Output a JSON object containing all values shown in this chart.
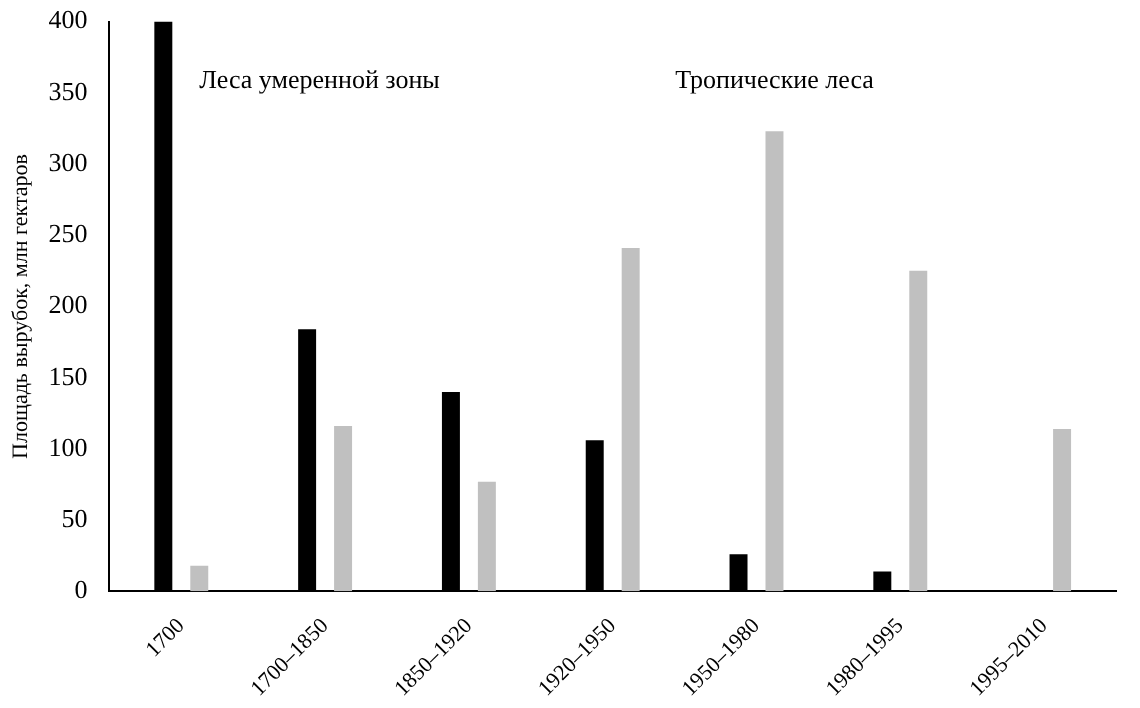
{
  "chart_data": {
    "type": "bar",
    "ylabel": "Площадь вырубок, млн гектаров",
    "categories": [
      "1700",
      "1700–1850",
      "1850–1920",
      "1920–1950",
      "1950–1980",
      "1980–1995",
      "1995–2010"
    ],
    "series": [
      {
        "name": "Леса умеренной зоны",
        "color": "#000000",
        "values": [
          400,
          184,
          140,
          106,
          26,
          14,
          null
        ]
      },
      {
        "name": "Тропические леса",
        "color": "#c0c0c0",
        "values": [
          18,
          116,
          77,
          241,
          323,
          225,
          114
        ]
      }
    ],
    "ylim": [
      0,
      400
    ],
    "yticks": [
      0,
      50,
      100,
      150,
      200,
      250,
      300,
      350,
      400
    ],
    "grid": false,
    "legend": false
  }
}
